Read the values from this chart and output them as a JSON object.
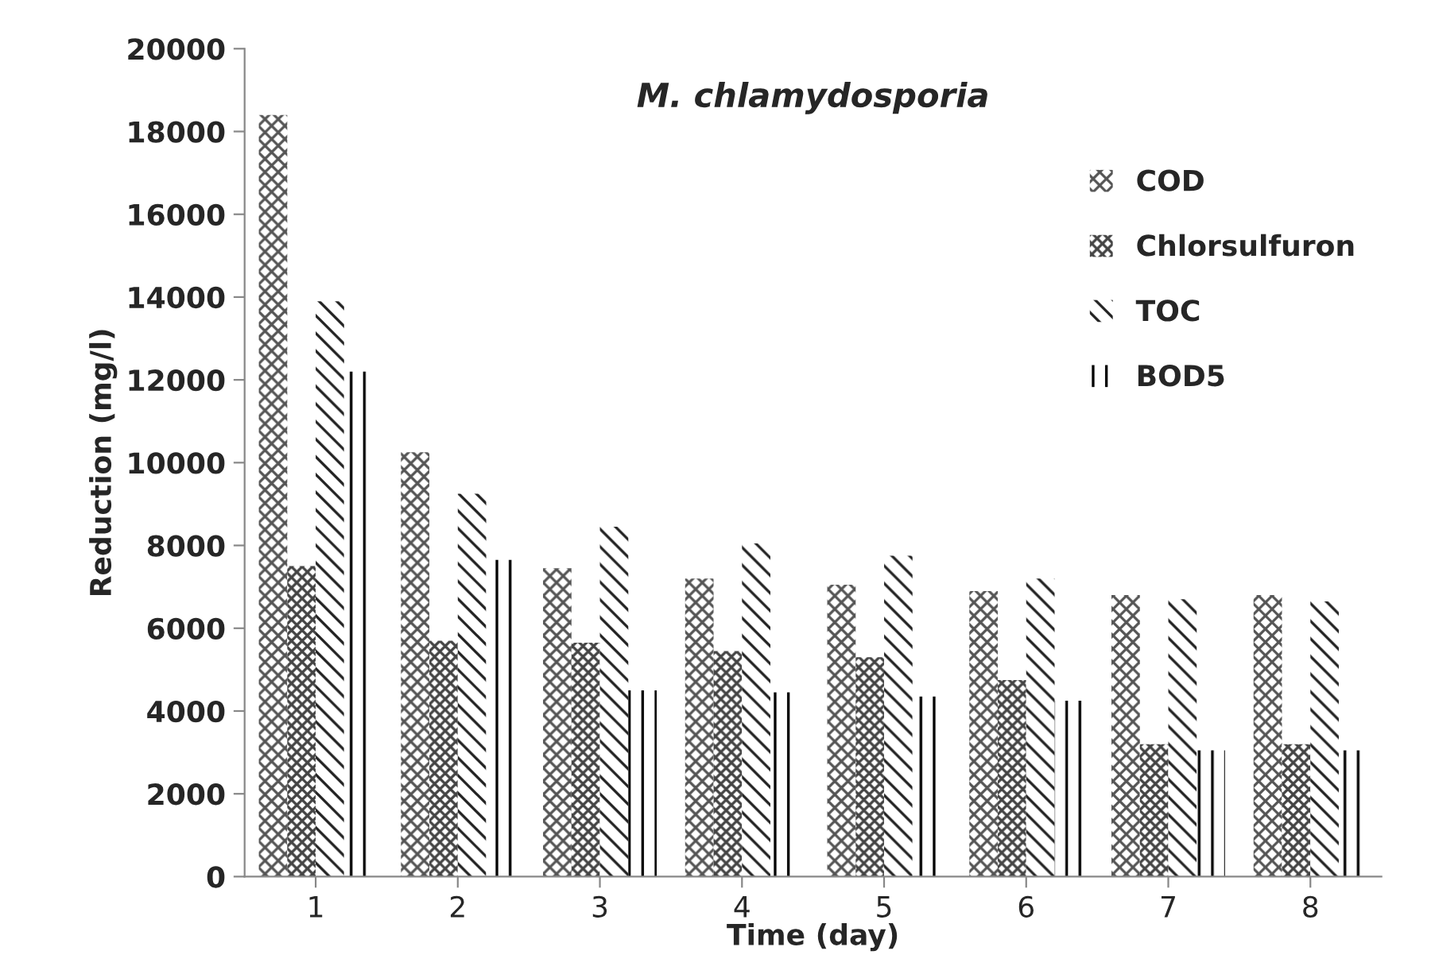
{
  "chart_data": {
    "type": "bar",
    "title": "M. chlamydosporia",
    "xlabel": "Time (day)",
    "ylabel": "Reduction (mg/l)",
    "categories": [
      "1",
      "2",
      "3",
      "4",
      "5",
      "6",
      "7",
      "8"
    ],
    "series": [
      {
        "name": "COD",
        "color": "#555555",
        "values": [
          18400,
          10250,
          7450,
          7200,
          7050,
          6900,
          6800,
          6800
        ]
      },
      {
        "name": "Chlorsulfuron",
        "color": "#444444",
        "values": [
          7500,
          5700,
          5650,
          5450,
          5300,
          4750,
          3200,
          3200
        ]
      },
      {
        "name": "TOC",
        "color": "#222222",
        "values": [
          13900,
          9250,
          8450,
          8050,
          7750,
          7200,
          6700,
          6650
        ]
      },
      {
        "name": "BOD5",
        "color": "#000000",
        "values": [
          12200,
          7650,
          4500,
          4450,
          4350,
          4250,
          3050,
          3050
        ]
      }
    ],
    "ylim": [
      0,
      20000
    ],
    "yticks": [
      0,
      2000,
      4000,
      6000,
      8000,
      10000,
      12000,
      14000,
      16000,
      18000,
      20000
    ],
    "legend": "right",
    "grid": false
  }
}
